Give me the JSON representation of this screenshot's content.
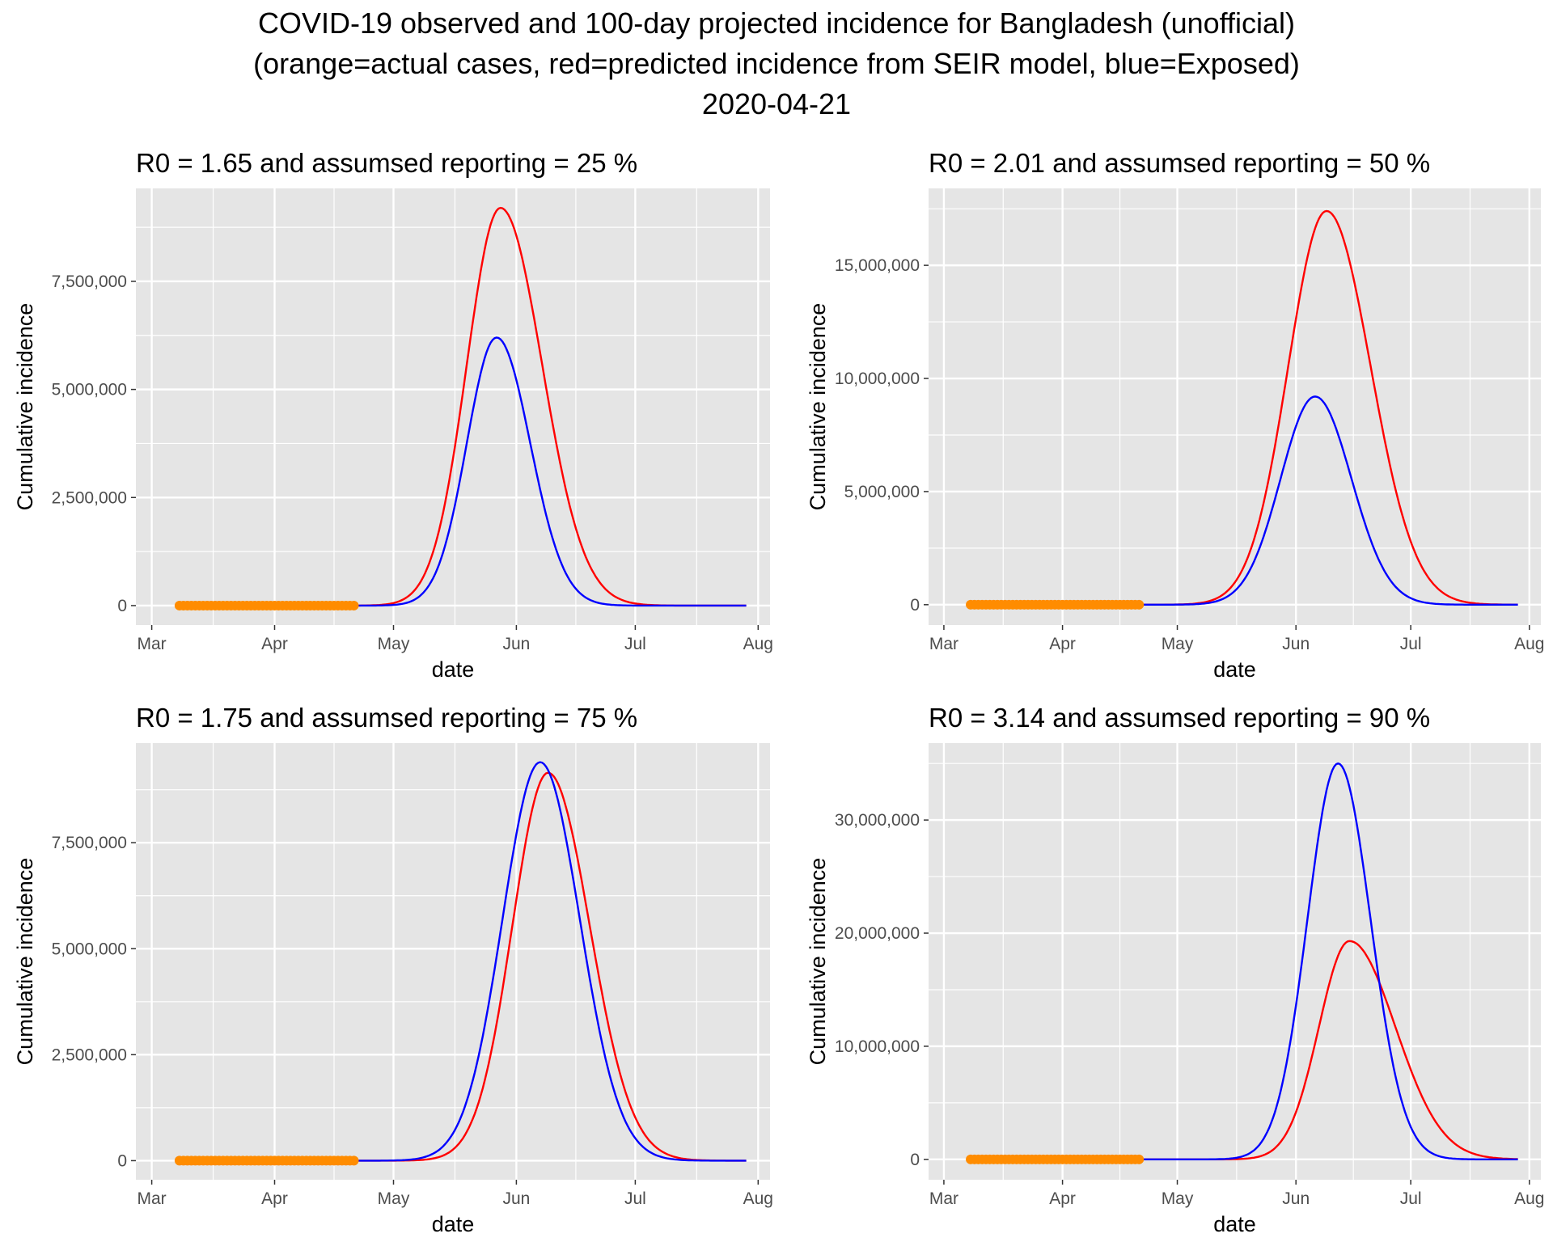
{
  "figure": {
    "title_line1": "COVID-19 observed and 100-day projected  incidence for Bangladesh (unofficial)",
    "title_line2": "(orange=actual cases, red=predicted incidence from SEIR model, blue=Exposed)",
    "title_line3": "2020-04-21"
  },
  "colors": {
    "panel_background": "#e5e5e5",
    "grid": "#ffffff",
    "actual_cases": "#ff8c00",
    "predicted_incidence": "#ff0000",
    "exposed": "#0000ff"
  },
  "chart_data": [
    {
      "type": "line",
      "title": "R0 = 1.65 and assumsed reporting = 25 %",
      "xlabel": "date",
      "ylabel": "Cumulative incidence",
      "x_ticks": [
        "Mar",
        "Apr",
        "May",
        "Jun",
        "Jul",
        "Aug"
      ],
      "x_tick_dates": [
        "2020-03-01",
        "2020-04-01",
        "2020-05-01",
        "2020-06-01",
        "2020-07-01",
        "2020-08-01"
      ],
      "xlim": [
        "2020-02-26",
        "2020-08-04"
      ],
      "y_ticks": [
        0,
        2500000,
        5000000,
        7500000
      ],
      "y_tick_labels": [
        "0",
        "2,500,000",
        "5,000,000",
        "7,500,000"
      ],
      "ylim": [
        -450000,
        9650000
      ],
      "grid": true,
      "actual_cases": {
        "start": "2020-03-08",
        "end": "2020-04-21",
        "value": 0
      },
      "series": [
        {
          "name": "predicted incidence",
          "color": "#ff0000",
          "peak_date": "2020-05-28",
          "peak": 9200000,
          "sigma_left": 8.5,
          "sigma_right": 10.5,
          "end": "2020-07-29"
        },
        {
          "name": "Exposed",
          "color": "#0000ff",
          "peak_date": "2020-05-27",
          "peak": 6200000,
          "sigma_left": 7.5,
          "sigma_right": 8.5,
          "end": "2020-07-29"
        }
      ]
    },
    {
      "type": "line",
      "title": "R0 = 2.01 and assumsed reporting = 50 %",
      "xlabel": "date",
      "ylabel": "Cumulative incidence",
      "x_ticks": [
        "Mar",
        "Apr",
        "May",
        "Jun",
        "Jul",
        "Aug"
      ],
      "x_tick_dates": [
        "2020-03-01",
        "2020-04-01",
        "2020-05-01",
        "2020-06-01",
        "2020-07-01",
        "2020-08-01"
      ],
      "xlim": [
        "2020-02-26",
        "2020-08-04"
      ],
      "y_ticks": [
        0,
        5000000,
        10000000,
        15000000
      ],
      "y_tick_labels": [
        "0",
        "5,000,000",
        "10,000,000",
        "15,000,000"
      ],
      "ylim": [
        -900000,
        18400000
      ],
      "grid": true,
      "actual_cases": {
        "start": "2020-03-08",
        "end": "2020-04-21",
        "value": 0
      },
      "series": [
        {
          "name": "predicted incidence",
          "color": "#ff0000",
          "peak_date": "2020-06-09",
          "peak": 17400000,
          "sigma_left": 10,
          "sigma_right": 11.5,
          "end": "2020-07-29"
        },
        {
          "name": "Exposed",
          "color": "#0000ff",
          "peak_date": "2020-06-06",
          "peak": 9200000,
          "sigma_left": 9,
          "sigma_right": 9.5,
          "end": "2020-07-29"
        }
      ]
    },
    {
      "type": "line",
      "title": "R0 = 1.75 and assumsed reporting = 75 %",
      "xlabel": "date",
      "ylabel": "Cumulative incidence",
      "x_ticks": [
        "Mar",
        "Apr",
        "May",
        "Jun",
        "Jul",
        "Aug"
      ],
      "x_tick_dates": [
        "2020-03-01",
        "2020-04-01",
        "2020-05-01",
        "2020-06-01",
        "2020-07-01",
        "2020-08-01"
      ],
      "xlim": [
        "2020-02-26",
        "2020-08-04"
      ],
      "y_ticks": [
        0,
        2500000,
        5000000,
        7500000
      ],
      "y_tick_labels": [
        "0",
        "2,500,000",
        "5,000,000",
        "7,500,000"
      ],
      "ylim": [
        -450000,
        9850000
      ],
      "grid": true,
      "actual_cases": {
        "start": "2020-03-08",
        "end": "2020-04-21",
        "value": 0
      },
      "series": [
        {
          "name": "predicted incidence",
          "color": "#ff0000",
          "peak_date": "2020-06-09",
          "peak": 9150000,
          "sigma_left": 9,
          "sigma_right": 10.5,
          "end": "2020-07-29"
        },
        {
          "name": "Exposed",
          "color": "#0000ff",
          "peak_date": "2020-06-07",
          "peak": 9400000,
          "sigma_left": 9.5,
          "sigma_right": 10,
          "end": "2020-07-29"
        }
      ]
    },
    {
      "type": "line",
      "title": "R0 = 3.14 and assumsed reporting = 90 %",
      "xlabel": "date",
      "ylabel": "Cumulative incidence",
      "x_ticks": [
        "Mar",
        "Apr",
        "May",
        "Jun",
        "Jul",
        "Aug"
      ],
      "x_tick_dates": [
        "2020-03-01",
        "2020-04-01",
        "2020-05-01",
        "2020-06-01",
        "2020-07-01",
        "2020-08-01"
      ],
      "xlim": [
        "2020-02-26",
        "2020-08-04"
      ],
      "y_ticks": [
        0,
        10000000,
        20000000,
        30000000
      ],
      "y_tick_labels": [
        "0",
        "10,000,000",
        "20,000,000",
        "30,000,000"
      ],
      "ylim": [
        -1800000,
        36800000
      ],
      "grid": true,
      "actual_cases": {
        "start": "2020-03-08",
        "end": "2020-04-21",
        "value": 0
      },
      "series": [
        {
          "name": "predicted incidence",
          "color": "#ff0000",
          "peak_date": "2020-06-15",
          "peak": 19300000,
          "sigma_left": 8,
          "sigma_right": 12,
          "end": "2020-07-29"
        },
        {
          "name": "Exposed",
          "color": "#0000ff",
          "peak_date": "2020-06-12",
          "peak": 35000000,
          "sigma_left": 8,
          "sigma_right": 8.5,
          "end": "2020-07-29"
        }
      ]
    }
  ]
}
